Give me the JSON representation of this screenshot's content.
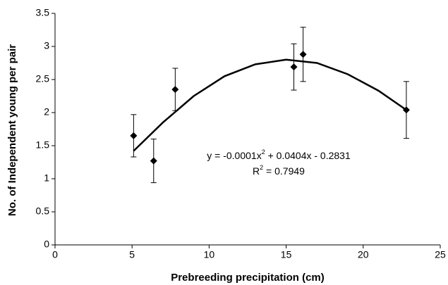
{
  "chart_data": {
    "type": "scatter",
    "x_label": "Prebreeding precipitation (cm)",
    "y_label": "No. of Independent young per pair",
    "xlim": [
      0,
      25
    ],
    "xticks": [
      0,
      5,
      10,
      15,
      20,
      25
    ],
    "ylim": [
      0,
      3.5
    ],
    "yticks": [
      0,
      0.5,
      1,
      1.5,
      2,
      2.5,
      3,
      3.5
    ],
    "grid": false,
    "series": [
      {
        "type": "scatter",
        "color": "#000000",
        "x": [
          5.1,
          6.4,
          7.8,
          15.5,
          16.1,
          22.8
        ],
        "values": [
          1.65,
          1.27,
          2.35,
          2.69,
          2.88,
          2.04
        ],
        "errors": [
          0.32,
          0.33,
          0.32,
          0.35,
          0.41,
          0.43
        ]
      },
      {
        "type": "line",
        "color": "#000000",
        "x": [
          5.1,
          7,
          9,
          11,
          13,
          15,
          17,
          19,
          21,
          22.8
        ],
        "values": [
          1.42,
          1.85,
          2.25,
          2.55,
          2.73,
          2.8,
          2.75,
          2.58,
          2.33,
          2.04
        ]
      }
    ],
    "annotations": [
      [
        "y = -0.0001x",
        "2",
        " + 0.0404x - 0.2831"
      ],
      [
        "R",
        "2",
        " = 0.7949"
      ]
    ]
  }
}
